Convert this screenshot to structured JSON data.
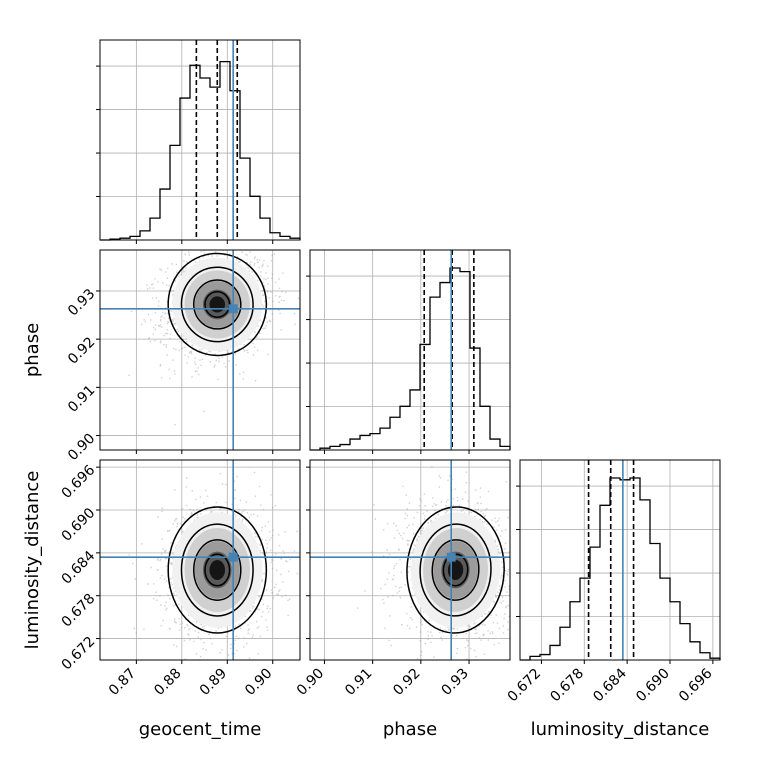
{
  "chart_data": {
    "type": "corner",
    "parameters": [
      "geocent_time",
      "phase",
      "luminosity_distance"
    ],
    "truths": [
      0.8913,
      0.9263,
      0.6834
    ],
    "truth_color": "#4682b4",
    "ranges": [
      [
        0.862,
        0.906
      ],
      [
        0.897,
        0.9385
      ],
      [
        0.669,
        0.697
      ]
    ],
    "ticks": [
      {
        "values": [
          0.87,
          0.88,
          0.89,
          0.9
        ],
        "labels": [
          "0.87",
          "0.88",
          "0.89",
          "0.90"
        ]
      },
      {
        "values": [
          0.9,
          0.91,
          0.92,
          0.93
        ],
        "labels": [
          "0.90",
          "0.91",
          "0.92",
          "0.93"
        ]
      },
      {
        "values": [
          0.672,
          0.678,
          0.684,
          0.69,
          0.696
        ],
        "labels": [
          "0.672",
          "0.678",
          "0.684",
          "0.690",
          "0.696"
        ]
      }
    ],
    "quantiles": [
      [
        0.8832,
        0.8878,
        0.8922
      ],
      [
        0.9207,
        0.9265,
        0.931
      ],
      [
        0.6786,
        0.6817,
        0.6849
      ]
    ],
    "histograms": [
      [
        0,
        0.005,
        0.01,
        0.02,
        0.05,
        0.12,
        0.28,
        0.52,
        0.78,
        0.96,
        0.89,
        0.84,
        0.98,
        0.82,
        0.45,
        0.24,
        0.12,
        0.04,
        0.02,
        0.01
      ],
      [
        0,
        0.01,
        0.02,
        0.03,
        0.06,
        0.08,
        0.09,
        0.12,
        0.18,
        0.24,
        0.33,
        0.58,
        0.84,
        0.92,
        1.0,
        0.98,
        0.56,
        0.24,
        0.06,
        0.02
      ],
      [
        0,
        0.02,
        0.03,
        0.08,
        0.18,
        0.32,
        0.45,
        0.62,
        0.85,
        1.0,
        0.99,
        1.0,
        0.88,
        0.64,
        0.45,
        0.32,
        0.2,
        0.1,
        0.04,
        0.01
      ]
    ],
    "posterior_mode": [
      0.8878,
      0.9272,
      0.6816
    ],
    "posterior_sigma": [
      0.0045,
      0.0042,
      0.0035
    ],
    "correlations": [
      {
        "pair": [
          0,
          1
        ],
        "rho": 0.15
      },
      {
        "pair": [
          0,
          2
        ],
        "rho": 0.0
      },
      {
        "pair": [
          1,
          2
        ],
        "rho": -0.1
      }
    ]
  }
}
